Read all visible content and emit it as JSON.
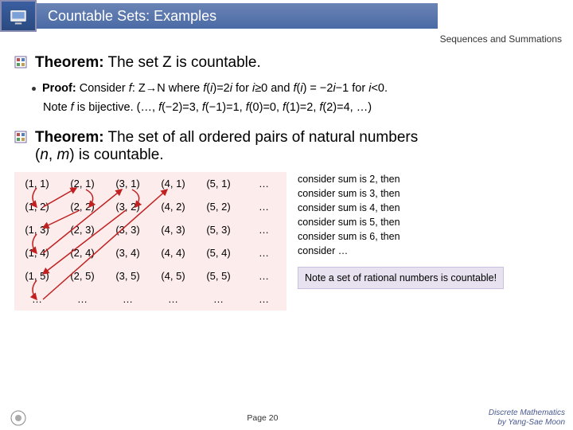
{
  "title": "Countable Sets: Examples",
  "subtitle": "Sequences and Summations",
  "theorem1": {
    "label": "Theorem:",
    "text": " The set Z is countable."
  },
  "proof": {
    "label": "Proof:",
    "line1a": " Consider ",
    "line1b": ": Z→N where ",
    "line1c": ")=2",
    "line1d": " for ",
    "line1e": "≥0 and ",
    "line1f": ") = −2",
    "line1g": "−1 for ",
    "line1h": "<0.",
    "line2a": "Note ",
    "line2b": " is bijective. (…, ",
    "line2c": "(−2)=3, ",
    "line2d": "(−1)=1, ",
    "line2e": "(0)=0, ",
    "line2f": "(1)=2, ",
    "line2g": "(2)=4, …)"
  },
  "theorem2": {
    "label": "Theorem:",
    "text1": " The set of all ordered pairs of natural numbers",
    "text2": "(",
    "text3": ", ",
    "text4": ") is countable."
  },
  "grid": {
    "rows": [
      [
        "(1, 1)",
        "(2, 1)",
        "(3, 1)",
        "(4, 1)",
        "(5, 1)",
        "…"
      ],
      [
        "(1, 2)",
        "(2, 2)",
        "(3, 2)",
        "(4, 2)",
        "(5, 2)",
        "…"
      ],
      [
        "(1, 3)",
        "(2, 3)",
        "(3, 3)",
        "(4, 3)",
        "(5, 3)",
        "…"
      ],
      [
        "(1, 4)",
        "(2, 4)",
        "(3, 4)",
        "(4, 4)",
        "(5, 4)",
        "…"
      ],
      [
        "(1, 5)",
        "(2, 5)",
        "(3, 5)",
        "(4, 5)",
        "(5, 5)",
        "…"
      ],
      [
        "…",
        "…",
        "…",
        "…",
        "…",
        "…"
      ]
    ],
    "bg": "#fdecec",
    "arrow_color": "#c02020"
  },
  "sidenotes": [
    "consider sum is 2, then",
    "consider sum is 3, then",
    "consider sum is 4, then",
    "consider sum is 5, then",
    "consider sum is 6, then",
    "consider …"
  ],
  "notebox": "Note a set of rational numbers is countable!",
  "footer": {
    "page": "Page 20",
    "credit1": "Discrete Mathematics",
    "credit2": "by Yang-Sae Moon"
  }
}
